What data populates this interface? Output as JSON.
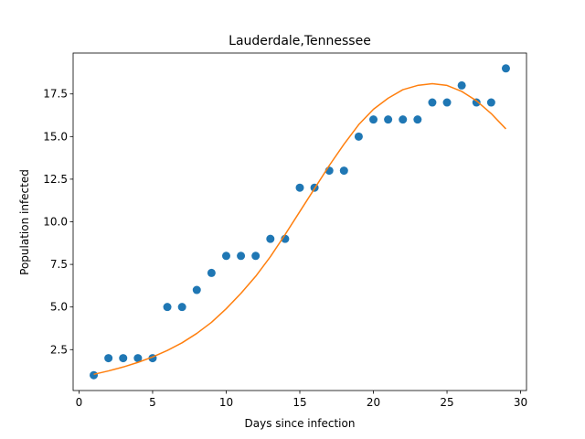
{
  "chart_data": {
    "type": "scatter",
    "title": "Lauderdale,Tennessee",
    "xlabel": "Days since infection",
    "ylabel": "Population infected",
    "xlim": [
      -0.4,
      30.4
    ],
    "ylim": [
      0.1,
      19.9
    ],
    "xticks": [
      0,
      5,
      10,
      15,
      20,
      25,
      30
    ],
    "xtick_labels": [
      "0",
      "5",
      "10",
      "15",
      "20",
      "25",
      "30"
    ],
    "yticks": [
      2.5,
      5.0,
      7.5,
      10.0,
      12.5,
      15.0,
      17.5
    ],
    "ytick_labels": [
      "2.5",
      "5.0",
      "7.5",
      "10.0",
      "12.5",
      "15.0",
      "17.5"
    ],
    "grid": false,
    "series": [
      {
        "kind": "scatter",
        "color": "#1f77b4",
        "x": [
          1,
          2,
          3,
          4,
          5,
          6,
          7,
          8,
          9,
          10,
          11,
          12,
          13,
          14,
          15,
          16,
          17,
          18,
          19,
          20,
          21,
          22,
          23,
          24,
          25,
          26,
          27,
          28,
          29
        ],
        "y": [
          1,
          2,
          2,
          2,
          2,
          5,
          5,
          6,
          7,
          8,
          8,
          8,
          9,
          9,
          12,
          12,
          13,
          13,
          15,
          16,
          16,
          16,
          16,
          17,
          17,
          18,
          17,
          17,
          19
        ]
      },
      {
        "kind": "line",
        "color": "#ff7f0e",
        "x": [
          1,
          2,
          3,
          4,
          5,
          6,
          7,
          8,
          9,
          10,
          11,
          12,
          13,
          14,
          15,
          16,
          17,
          18,
          19,
          20,
          21,
          22,
          23,
          24,
          25,
          26,
          27,
          28,
          29
        ],
        "y": [
          1.05,
          1.25,
          1.48,
          1.75,
          2.07,
          2.45,
          2.9,
          3.45,
          4.1,
          4.9,
          5.8,
          6.8,
          7.95,
          9.25,
          10.6,
          11.95,
          13.3,
          14.55,
          15.7,
          16.6,
          17.25,
          17.75,
          18.0,
          18.1,
          18.0,
          17.65,
          17.1,
          16.35,
          15.45
        ]
      }
    ]
  }
}
